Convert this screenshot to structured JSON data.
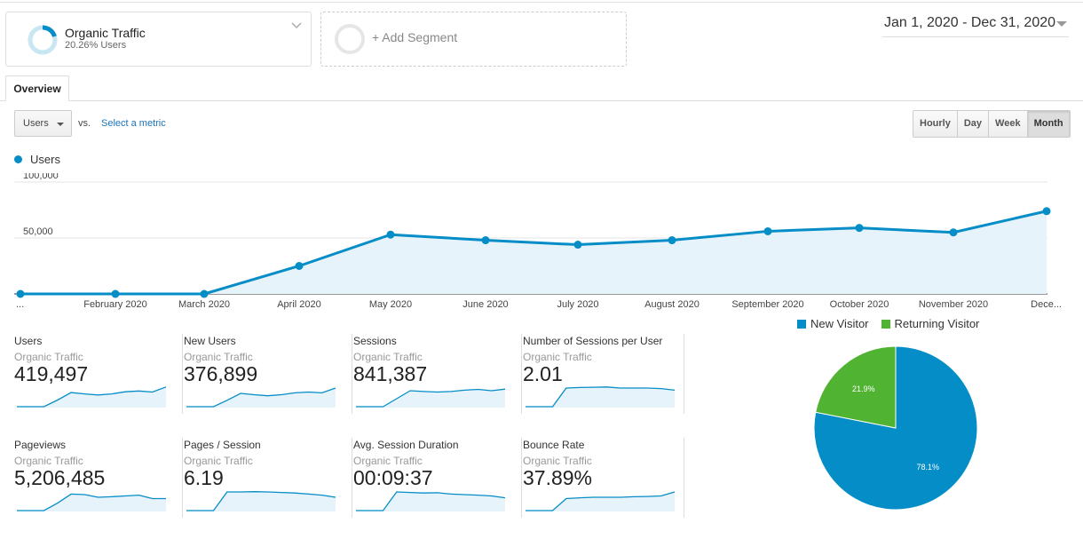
{
  "segment": {
    "title": "Organic Traffic",
    "subtitle": "20.26% Users"
  },
  "add_segment": {
    "label": "+ Add Segment"
  },
  "date_range": "Jan 1, 2020 - Dec 31, 2020",
  "tabs": [
    {
      "label": "Overview",
      "active": true
    }
  ],
  "metric_selector": {
    "value": "Users",
    "vs_label": "vs.",
    "select_link": "Select a metric"
  },
  "granularity": {
    "options": [
      "Hourly",
      "Day",
      "Week",
      "Month"
    ],
    "selected": "Month"
  },
  "colors": {
    "accent": "#058dc7",
    "returning": "#50b432",
    "link": "#1a73b8"
  },
  "chart_data": [
    {
      "type": "area",
      "series": [
        {
          "name": "Users",
          "values": [
            0,
            0,
            0,
            25000,
            53000,
            48000,
            44000,
            48000,
            56000,
            59000,
            55000,
            74000
          ]
        }
      ],
      "categories": [
        "...",
        "February 2020",
        "March 2020",
        "April 2020",
        "May 2020",
        "June 2020",
        "July 2020",
        "August 2020",
        "September 2020",
        "October 2020",
        "November 2020",
        "Dece..."
      ],
      "y_ticks": [
        "100,000",
        "50,000"
      ],
      "ylim": [
        0,
        100000
      ],
      "grid": true,
      "legend": "top-left"
    },
    {
      "type": "pie",
      "categories": [
        "New Visitor",
        "Returning Visitor"
      ],
      "values": [
        78.1,
        21.9
      ],
      "labels": [
        "78.1%",
        "21.9%"
      ],
      "legend": "top"
    }
  ],
  "scorecards": [
    {
      "name": "Users",
      "segment": "Organic Traffic",
      "value": "419,497",
      "trend": [
        0,
        0,
        0,
        25,
        53,
        48,
        44,
        48,
        56,
        59,
        55,
        74
      ]
    },
    {
      "name": "New Users",
      "segment": "Organic Traffic",
      "value": "376,899",
      "trend": [
        0,
        0,
        0,
        24,
        50,
        45,
        41,
        45,
        52,
        55,
        52,
        70
      ]
    },
    {
      "name": "Sessions",
      "segment": "Organic Traffic",
      "value": "841,387",
      "trend": [
        0,
        0,
        0,
        30,
        60,
        57,
        55,
        57,
        62,
        65,
        60,
        66
      ]
    },
    {
      "name": "Number of Sessions per User",
      "segment": "Organic Traffic",
      "value": "2.01",
      "trend": [
        0,
        0,
        0,
        70,
        72,
        73,
        74,
        70,
        70,
        70,
        68,
        62
      ]
    },
    {
      "name": "Pageviews",
      "segment": "Organic Traffic",
      "value": "5,206,485",
      "trend": [
        0,
        0,
        0,
        28,
        62,
        60,
        50,
        52,
        55,
        58,
        45,
        45
      ]
    },
    {
      "name": "Pages / Session",
      "segment": "Organic Traffic",
      "value": "6.19",
      "trend": [
        0,
        0,
        0,
        70,
        70,
        71,
        70,
        68,
        66,
        62,
        58,
        50
      ]
    },
    {
      "name": "Avg. Session Duration",
      "segment": "Organic Traffic",
      "value": "00:09:37",
      "trend": [
        0,
        0,
        0,
        70,
        68,
        66,
        67,
        62,
        60,
        58,
        55,
        48
      ]
    },
    {
      "name": "Bounce Rate",
      "segment": "Organic Traffic",
      "value": "37.89%",
      "trend": [
        0,
        0,
        0,
        45,
        48,
        50,
        50,
        50,
        52,
        53,
        55,
        70
      ]
    }
  ]
}
